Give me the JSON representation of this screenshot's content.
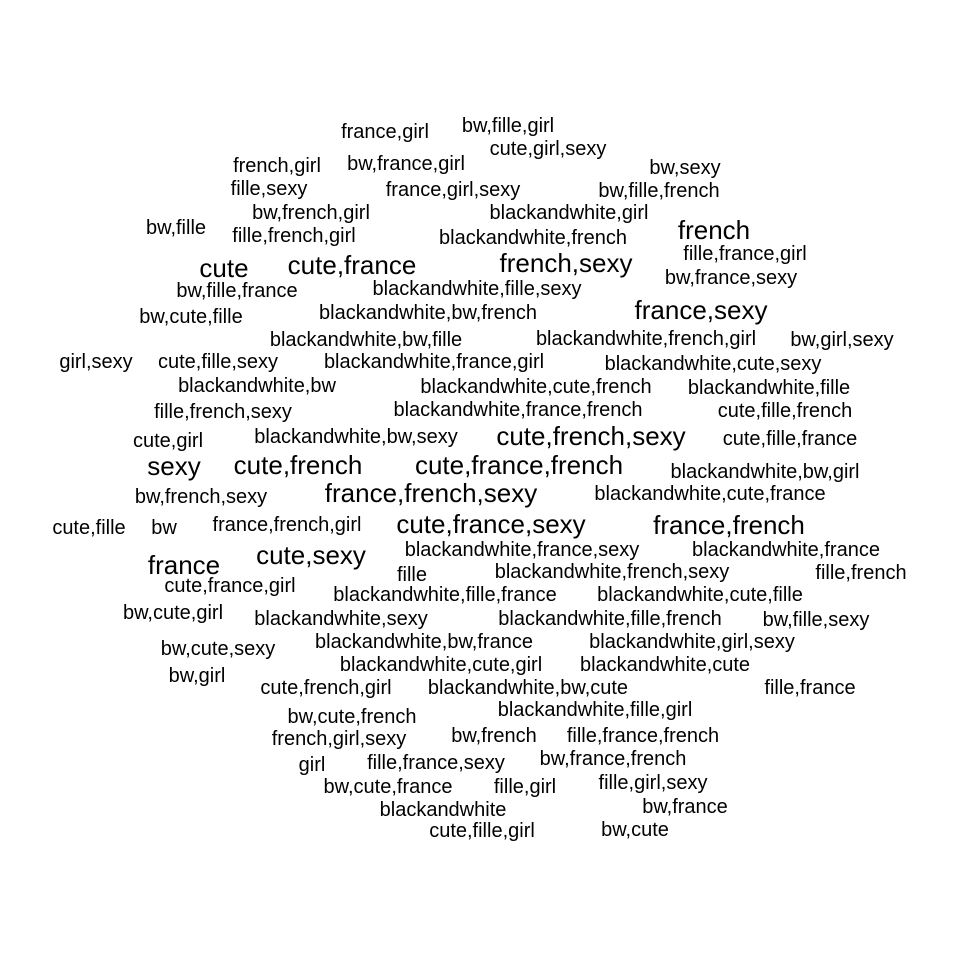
{
  "word_cloud": {
    "text_color": "#000000",
    "background_color": "#ffffff",
    "words": [
      {
        "text": "france,girl",
        "size": "sm"
      },
      {
        "text": "bw,fille,girl",
        "size": "sm"
      },
      {
        "text": "cute,girl,sexy",
        "size": "sm"
      },
      {
        "text": "french,girl",
        "size": "sm"
      },
      {
        "text": "bw,france,girl",
        "size": "sm"
      },
      {
        "text": "bw,sexy",
        "size": "sm"
      },
      {
        "text": "fille,sexy",
        "size": "sm"
      },
      {
        "text": "france,girl,sexy",
        "size": "sm"
      },
      {
        "text": "bw,fille,french",
        "size": "sm"
      },
      {
        "text": "bw,french,girl",
        "size": "sm"
      },
      {
        "text": "blackandwhite,girl",
        "size": "sm"
      },
      {
        "text": "bw,fille",
        "size": "sm"
      },
      {
        "text": "fille,french,girl",
        "size": "sm"
      },
      {
        "text": "blackandwhite,french",
        "size": "sm"
      },
      {
        "text": "french",
        "size": "lg"
      },
      {
        "text": "fille,france,girl",
        "size": "sm"
      },
      {
        "text": "cute",
        "size": "lg"
      },
      {
        "text": "cute,france",
        "size": "lg"
      },
      {
        "text": "french,sexy",
        "size": "lg"
      },
      {
        "text": "bw,france,sexy",
        "size": "sm"
      },
      {
        "text": "bw,fille,france",
        "size": "sm"
      },
      {
        "text": "blackandwhite,fille,sexy",
        "size": "sm"
      },
      {
        "text": "france,sexy",
        "size": "lg"
      },
      {
        "text": "bw,cute,fille",
        "size": "sm"
      },
      {
        "text": "blackandwhite,bw,french",
        "size": "sm"
      },
      {
        "text": "blackandwhite,bw,fille",
        "size": "sm"
      },
      {
        "text": "blackandwhite,french,girl",
        "size": "sm"
      },
      {
        "text": "bw,girl,sexy",
        "size": "sm"
      },
      {
        "text": "girl,sexy",
        "size": "sm"
      },
      {
        "text": "cute,fille,sexy",
        "size": "sm"
      },
      {
        "text": "blackandwhite,france,girl",
        "size": "sm"
      },
      {
        "text": "blackandwhite,cute,sexy",
        "size": "sm"
      },
      {
        "text": "blackandwhite,bw",
        "size": "sm"
      },
      {
        "text": "blackandwhite,cute,french",
        "size": "sm"
      },
      {
        "text": "blackandwhite,fille",
        "size": "sm"
      },
      {
        "text": "fille,french,sexy",
        "size": "sm"
      },
      {
        "text": "blackandwhite,france,french",
        "size": "sm"
      },
      {
        "text": "cute,fille,french",
        "size": "sm"
      },
      {
        "text": "cute,girl",
        "size": "sm"
      },
      {
        "text": "blackandwhite,bw,sexy",
        "size": "sm"
      },
      {
        "text": "cute,french,sexy",
        "size": "lg"
      },
      {
        "text": "cute,fille,france",
        "size": "sm"
      },
      {
        "text": "sexy",
        "size": "lg"
      },
      {
        "text": "cute,french",
        "size": "lg"
      },
      {
        "text": "cute,france,french",
        "size": "lg"
      },
      {
        "text": "blackandwhite,bw,girl",
        "size": "sm"
      },
      {
        "text": "bw,french,sexy",
        "size": "sm"
      },
      {
        "text": "france,french,sexy",
        "size": "lg"
      },
      {
        "text": "blackandwhite,cute,france",
        "size": "sm"
      },
      {
        "text": "cute,fille",
        "size": "sm"
      },
      {
        "text": "bw",
        "size": "sm"
      },
      {
        "text": "france,french,girl",
        "size": "sm"
      },
      {
        "text": "cute,france,sexy",
        "size": "lg"
      },
      {
        "text": "france,french",
        "size": "lg"
      },
      {
        "text": "france",
        "size": "lg"
      },
      {
        "text": "cute,sexy",
        "size": "lg"
      },
      {
        "text": "blackandwhite,france,sexy",
        "size": "sm"
      },
      {
        "text": "blackandwhite,france",
        "size": "sm"
      },
      {
        "text": "cute,france,girl",
        "size": "sm"
      },
      {
        "text": "fille",
        "size": "sm"
      },
      {
        "text": "blackandwhite,french,sexy",
        "size": "sm"
      },
      {
        "text": "fille,french",
        "size": "sm"
      },
      {
        "text": "blackandwhite,fille,france",
        "size": "sm"
      },
      {
        "text": "blackandwhite,cute,fille",
        "size": "sm"
      },
      {
        "text": "bw,cute,girl",
        "size": "sm"
      },
      {
        "text": "blackandwhite,sexy",
        "size": "sm"
      },
      {
        "text": "blackandwhite,fille,french",
        "size": "sm"
      },
      {
        "text": "bw,fille,sexy",
        "size": "sm"
      },
      {
        "text": "bw,cute,sexy",
        "size": "sm"
      },
      {
        "text": "blackandwhite,bw,france",
        "size": "sm"
      },
      {
        "text": "blackandwhite,girl,sexy",
        "size": "sm"
      },
      {
        "text": "blackandwhite,cute,girl",
        "size": "sm"
      },
      {
        "text": "blackandwhite,cute",
        "size": "sm"
      },
      {
        "text": "bw,girl",
        "size": "sm"
      },
      {
        "text": "cute,french,girl",
        "size": "sm"
      },
      {
        "text": "blackandwhite,bw,cute",
        "size": "sm"
      },
      {
        "text": "fille,france",
        "size": "sm"
      },
      {
        "text": "bw,cute,french",
        "size": "sm"
      },
      {
        "text": "blackandwhite,fille,girl",
        "size": "sm"
      },
      {
        "text": "french,girl,sexy",
        "size": "sm"
      },
      {
        "text": "bw,french",
        "size": "sm"
      },
      {
        "text": "fille,france,french",
        "size": "sm"
      },
      {
        "text": "girl",
        "size": "sm"
      },
      {
        "text": "fille,france,sexy",
        "size": "sm"
      },
      {
        "text": "bw,france,french",
        "size": "sm"
      },
      {
        "text": "bw,cute,france",
        "size": "sm"
      },
      {
        "text": "fille,girl",
        "size": "sm"
      },
      {
        "text": "fille,girl,sexy",
        "size": "sm"
      },
      {
        "text": "blackandwhite",
        "size": "sm"
      },
      {
        "text": "bw,france",
        "size": "sm"
      },
      {
        "text": "cute,fille,girl",
        "size": "sm"
      },
      {
        "text": "bw,cute",
        "size": "sm"
      }
    ]
  }
}
